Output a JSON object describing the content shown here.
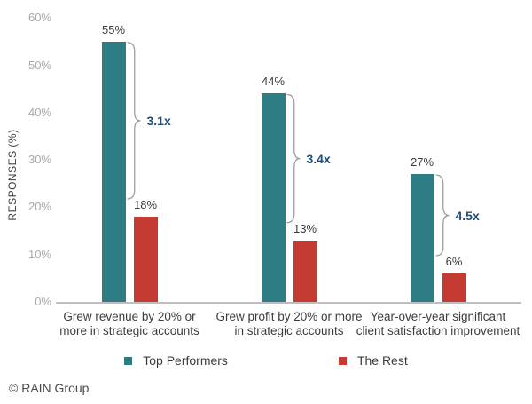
{
  "chart_data": {
    "type": "bar",
    "title": "",
    "ylabel": "RESPONSES (%)",
    "xlabel": "",
    "ylim": [
      0,
      60
    ],
    "y_ticks": [
      0,
      10,
      20,
      30,
      40,
      50,
      60
    ],
    "y_tick_suffix": "%",
    "grid": false,
    "legend_position": "bottom",
    "categories": [
      {
        "lines": [
          "Grew revenue by 20% or",
          "more in strategic accounts"
        ]
      },
      {
        "lines": [
          "Grew profit by 20% or more",
          "in strategic accounts"
        ]
      },
      {
        "lines": [
          "Year-over-year significant",
          "client satisfaction improvement"
        ]
      }
    ],
    "series": [
      {
        "name": "Top Performers",
        "color": "#2F7D84",
        "values": [
          55,
          44,
          27
        ]
      },
      {
        "name": "The Rest",
        "color": "#C43B34",
        "values": [
          18,
          13,
          6
        ]
      }
    ],
    "value_label_suffix": "%",
    "multipliers": [
      "3.1x",
      "3.4x",
      "4.5x"
    ],
    "colors": {
      "multiplier_text": "#1D4E79",
      "axis_line": "#BFBFBF",
      "tick_label": "#A9A9A9",
      "text": "#3C3C3C",
      "brace": "#9E9E9E"
    }
  },
  "footer": {
    "copyright": "© RAIN Group"
  }
}
